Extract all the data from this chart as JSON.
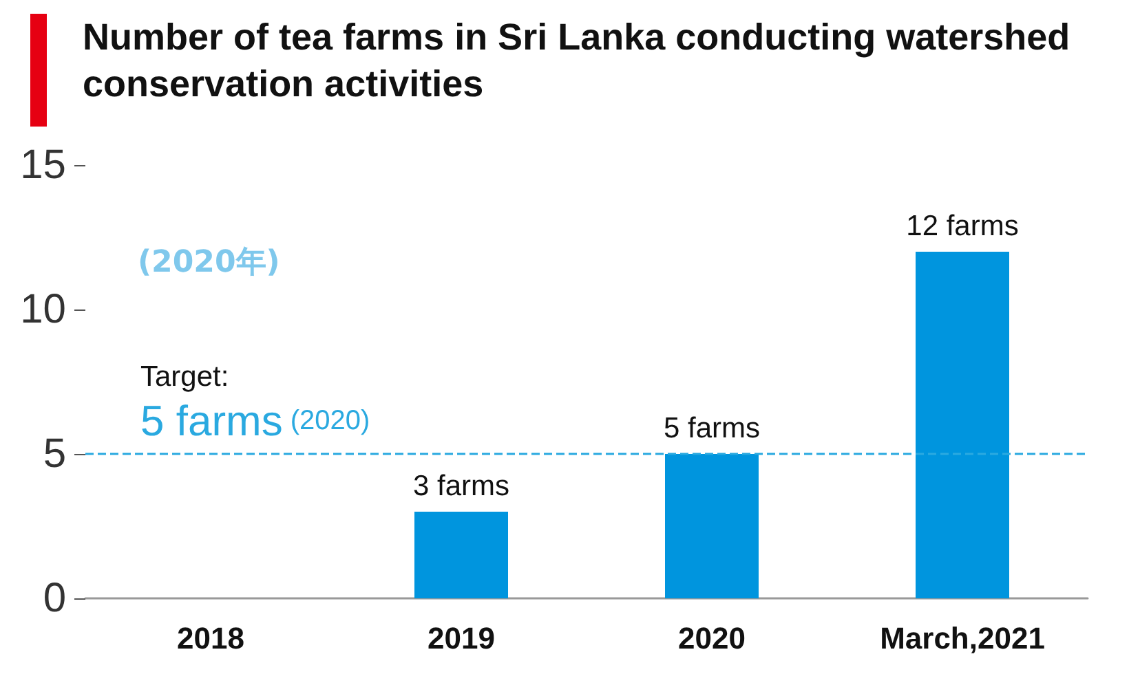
{
  "chart_data": {
    "type": "bar",
    "title": "Number of tea farms in Sri Lanka conducting watershed conservation activities",
    "categories": [
      "2018",
      "2019",
      "2020",
      "March,2021"
    ],
    "values": [
      null,
      3,
      5,
      12
    ],
    "value_labels": [
      null,
      "3 farms",
      "5 farms",
      "12 farms"
    ],
    "color": "#0095de",
    "ylim": [
      0,
      15
    ],
    "yticks": [
      0,
      5,
      10,
      15
    ],
    "grid": false,
    "ref_lines": [
      {
        "axis": "y",
        "value": 5,
        "label": "Target: 5 farms (2020)",
        "color": "#2aa9e0",
        "line_style": "dashed"
      }
    ],
    "annotations": [
      "(2020年)"
    ]
  }
}
